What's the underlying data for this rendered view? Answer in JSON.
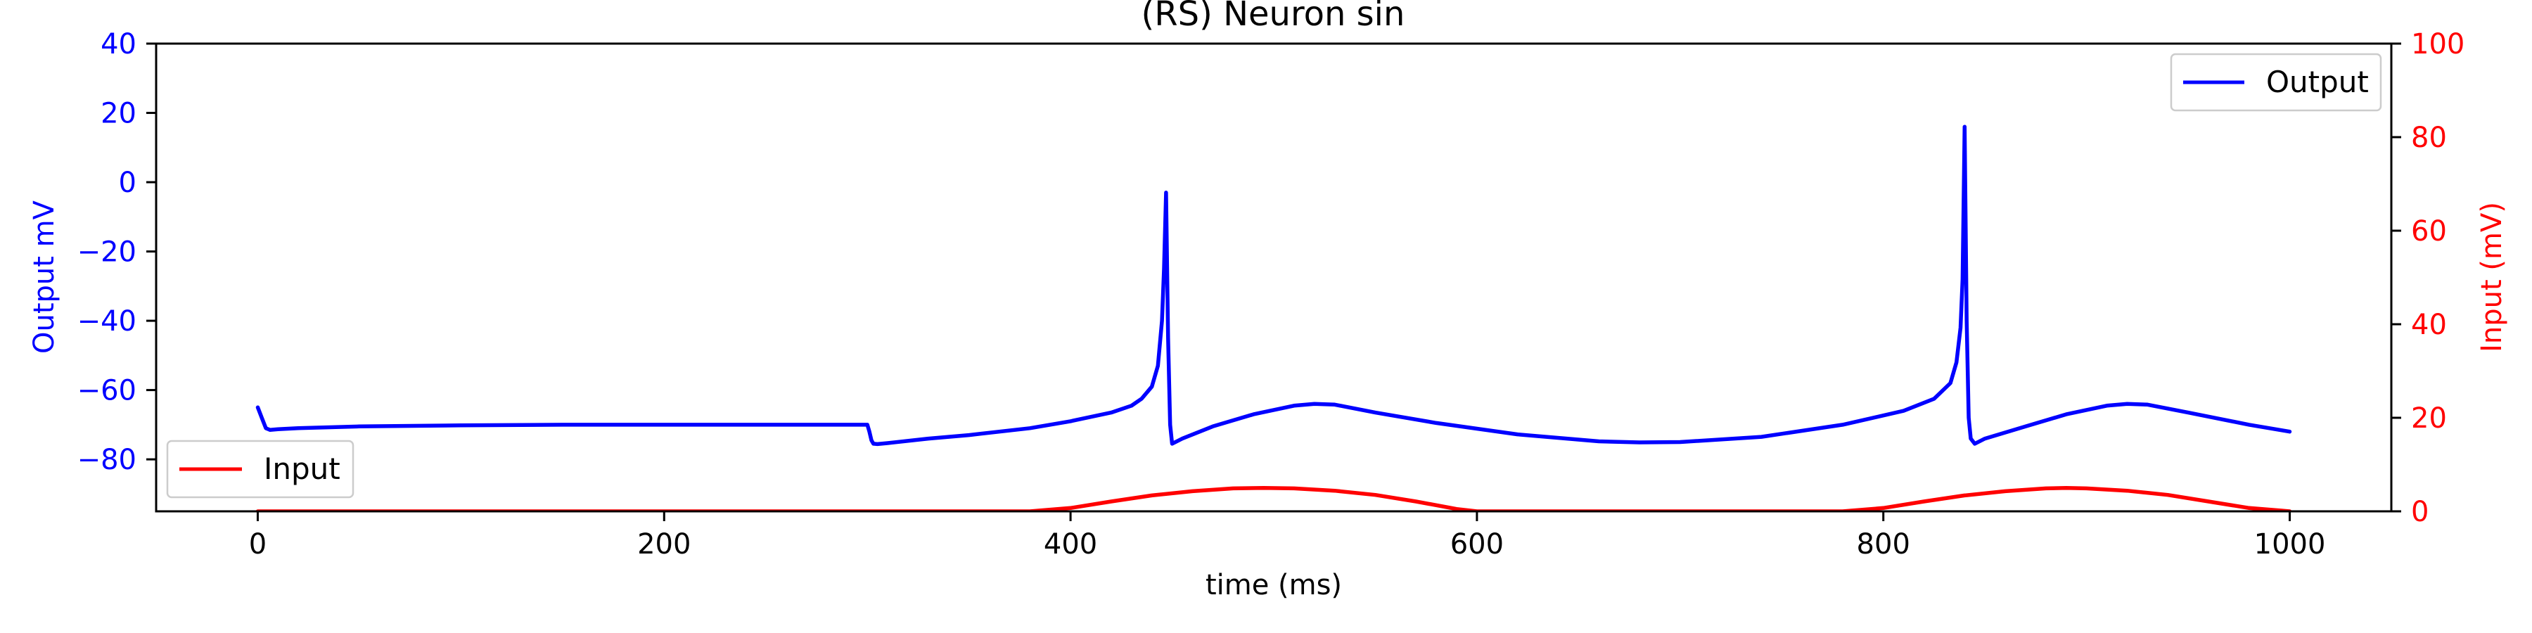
{
  "chart_data": {
    "type": "line",
    "title": "(RS) Neuron sin",
    "xlabel": "time (ms)",
    "ylabel_left": "Output mV",
    "ylabel_right": "Input (mV)",
    "xlim": [
      -50,
      1050
    ],
    "ylim_left": [
      -95,
      40
    ],
    "ylim_right": [
      0,
      100
    ],
    "xticks": [
      0,
      200,
      400,
      600,
      800,
      1000
    ],
    "yticks_left": [
      -80,
      -60,
      -40,
      -20,
      0,
      20,
      40
    ],
    "yticks_right": [
      0,
      20,
      40,
      60,
      80,
      100
    ],
    "grid": false,
    "colors": {
      "output": "#0000ff",
      "input": "#ff0000",
      "axis": "#000000"
    },
    "series": [
      {
        "name": "Output",
        "axis": "left",
        "color": "#0000ff",
        "legend_position": "upper right",
        "x": [
          0,
          2,
          4,
          6,
          10,
          20,
          50,
          100,
          150,
          200,
          250,
          300,
          301,
          302,
          303,
          305,
          310,
          330,
          350,
          380,
          400,
          420,
          430,
          435,
          440,
          443,
          445,
          446,
          447,
          448,
          449,
          450,
          455,
          470,
          490,
          510,
          520,
          530,
          550,
          580,
          620,
          660,
          680,
          700,
          740,
          780,
          810,
          825,
          833,
          836,
          838,
          839,
          840,
          841,
          842,
          843,
          845,
          850,
          870,
          890,
          910,
          920,
          930,
          950,
          980,
          1000
        ],
        "y": [
          -65,
          -68,
          -71,
          -71.5,
          -71.3,
          -71,
          -70.5,
          -70.2,
          -70,
          -70,
          -70,
          -70,
          -72,
          -74.5,
          -75.5,
          -75.6,
          -75.3,
          -74,
          -73,
          -71,
          -69,
          -66.5,
          -64.5,
          -62.5,
          -59,
          -53,
          -40,
          -25,
          -3,
          -45,
          -70,
          -75.5,
          -74,
          -70.5,
          -67,
          -64.5,
          -64,
          -64.2,
          -66.5,
          -69.5,
          -72.8,
          -74.8,
          -75.1,
          -75,
          -73.5,
          -70,
          -66,
          -62.5,
          -58,
          -52,
          -42,
          -28,
          16,
          -40,
          -68,
          -74,
          -75.5,
          -74,
          -70.5,
          -67,
          -64.5,
          -64,
          -64.2,
          -66.5,
          -70,
          -72
        ]
      },
      {
        "name": "Input",
        "axis": "right",
        "color": "#ff0000",
        "legend_position": "lower left",
        "x": [
          0,
          300,
          350,
          380,
          400,
          420,
          440,
          460,
          480,
          495,
          510,
          530,
          550,
          570,
          590,
          600,
          650,
          700,
          750,
          780,
          800,
          820,
          840,
          860,
          880,
          890,
          900,
          920,
          940,
          960,
          980,
          995,
          1000
        ],
        "y": [
          0,
          0,
          0,
          0,
          0.7,
          2.1,
          3.4,
          4.3,
          4.9,
          5,
          4.9,
          4.4,
          3.5,
          2.1,
          0.5,
          0,
          0,
          0,
          0,
          0,
          0.7,
          2.1,
          3.4,
          4.3,
          4.9,
          5,
          4.9,
          4.4,
          3.5,
          2.1,
          0.7,
          0.2,
          0
        ]
      }
    ]
  }
}
